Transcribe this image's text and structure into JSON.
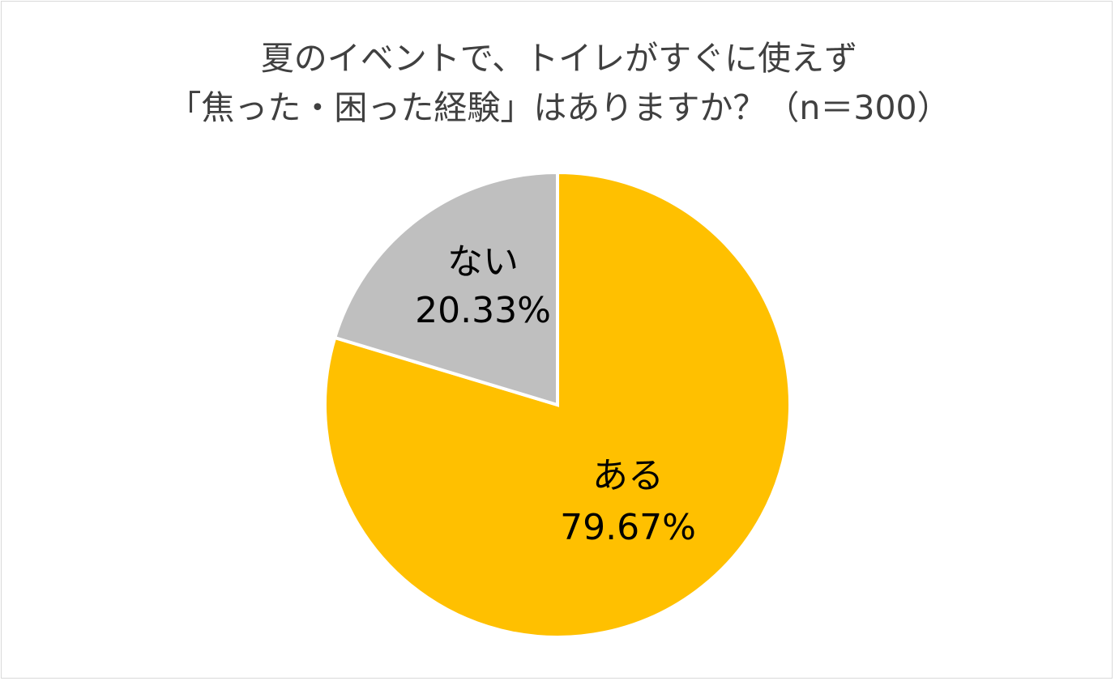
{
  "chart_data": {
    "type": "pie",
    "title_lines": [
      "夏のイベントで、トイレがすぐに使えず",
      "「焦った・困った経験」はありますか？（n＝300）"
    ],
    "categories": [
      "ある",
      "ない"
    ],
    "values": [
      79.67,
      20.33
    ],
    "value_labels": [
      "79.67%",
      "20.33%"
    ],
    "unit": "%",
    "colors": [
      "#FFC000",
      "#BFBFBF"
    ],
    "start_angle_deg": 0,
    "direction": "clockwise",
    "legend": "none"
  }
}
